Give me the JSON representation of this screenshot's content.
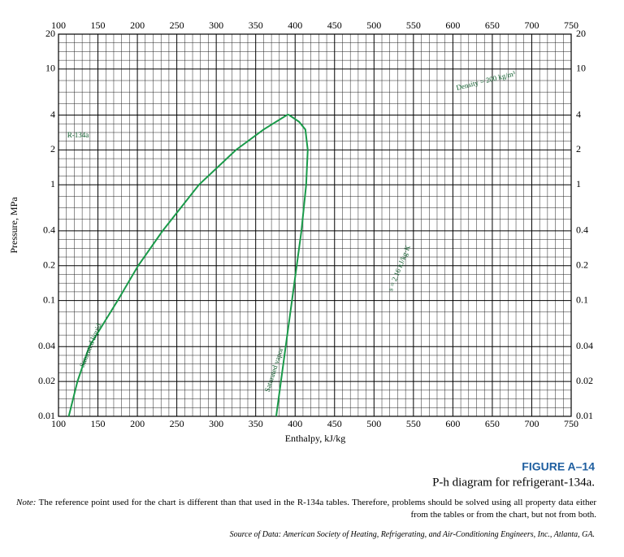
{
  "chart_data": {
    "type": "line",
    "ylabel": "Pressure, MPa",
    "xlabel": "Enthalpy, kJ/kg",
    "xlim": [
      100,
      750
    ],
    "xticks": [
      100,
      150,
      200,
      250,
      300,
      350,
      400,
      450,
      500,
      550,
      600,
      650,
      700,
      750
    ],
    "ylim": [
      0.01,
      20
    ],
    "yticks": [
      0.01,
      0.02,
      0.04,
      0.1,
      0.2,
      0.4,
      1,
      2,
      4,
      10,
      20
    ],
    "log_y": true,
    "grid": true,
    "color": "#1a9a4a",
    "lines": [
      {
        "x": [
          113,
          124,
          139,
          175,
          201,
          232,
          278,
          325,
          360,
          391
        ],
        "values": [
          0.01,
          0.02,
          0.04,
          0.1,
          0.2,
          0.4,
          1,
          2,
          3,
          4.06
        ]
      },
      {
        "x": [
          391,
          405,
          413,
          416,
          414,
          408,
          402,
          396,
          388,
          382,
          376
        ],
        "values": [
          4.06,
          3.5,
          3,
          2,
          1,
          0.4,
          0.2,
          0.1,
          0.04,
          0.02,
          0.01
        ]
      }
    ],
    "annotations": [
      "R-134a",
      "Saturated liquid",
      "Saturated vapor",
      "Density = 200 kg/m³",
      "s = 2.16 kJ/kg·K"
    ]
  },
  "figure": {
    "number": "FIGURE A–14",
    "caption": "P-h diagram for refrigerant-134a.",
    "note_label": "Note:",
    "note": "The reference point used for the chart is different than that used in the R-134a tables. Therefore, problems should be solved using all property data either from the tables or from the chart, but not from both.",
    "source": "Source of Data: American Society of Heating, Refrigerating, and Air-Conditioning Engineers, Inc., Atlanta, GA."
  }
}
